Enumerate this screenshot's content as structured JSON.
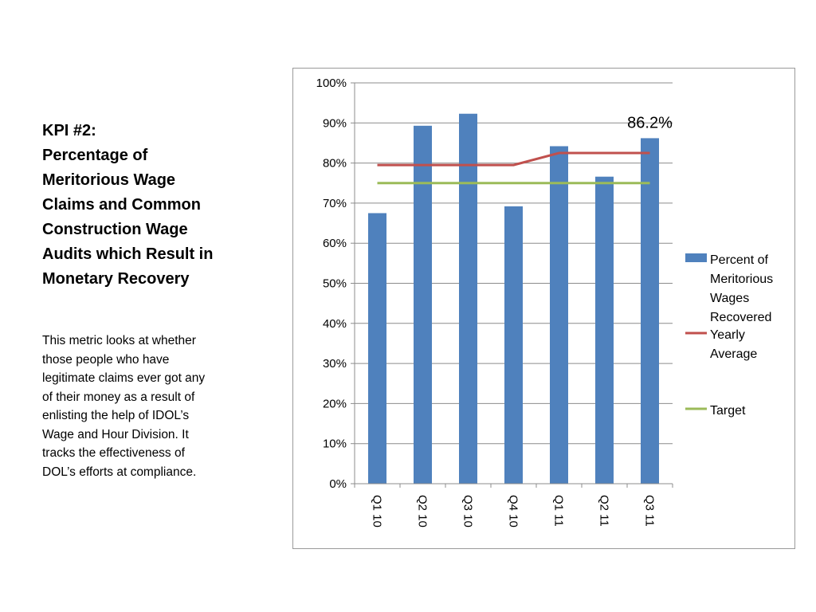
{
  "slide": {
    "title_lines": [
      "KPI #2:",
      "Percentage of",
      "Meritorious Wage",
      "Claims and Common",
      "Construction Wage",
      "Audits which Result in",
      "Monetary Recovery"
    ],
    "body_lines": [
      "This metric looks at whether",
      "those people who have",
      "legitimate claims ever got any",
      "of their money as a result of",
      "enlisting the help of IDOL’s",
      "Wage and Hour Division.  It",
      "tracks the effectiveness of",
      "DOL’s efforts at compliance."
    ]
  },
  "chart_data": {
    "type": "bar",
    "categories": [
      "Q1 10",
      "Q2 10",
      "Q3 10",
      "Q4 10",
      "Q1 11",
      "Q2 11",
      "Q3 11"
    ],
    "ylim": [
      0,
      100
    ],
    "yticks": [
      "0%",
      "10%",
      "20%",
      "30%",
      "40%",
      "50%",
      "60%",
      "70%",
      "80%",
      "90%",
      "100%"
    ],
    "grid": true,
    "legend_position": "right",
    "series": [
      {
        "name_lines": [
          "Percent of",
          "Meritorious",
          "Wages",
          "Recovered"
        ],
        "type": "bar",
        "color": "#4f81bd",
        "values": [
          67.5,
          89.3,
          92.3,
          69.2,
          84.2,
          76.6,
          86.2
        ]
      },
      {
        "name_lines": [
          "Yearly",
          "Average"
        ],
        "type": "line",
        "color": "#c0504d",
        "values": [
          79.5,
          79.5,
          79.5,
          79.5,
          82.5,
          82.5,
          82.5
        ]
      },
      {
        "name_lines": [
          "Target"
        ],
        "type": "line",
        "color": "#9bbb59",
        "values": [
          75,
          75,
          75,
          75,
          75,
          75,
          75
        ]
      }
    ],
    "annotations": [
      {
        "category": "Q3 11",
        "series": 0,
        "text": "86.2%"
      }
    ]
  }
}
